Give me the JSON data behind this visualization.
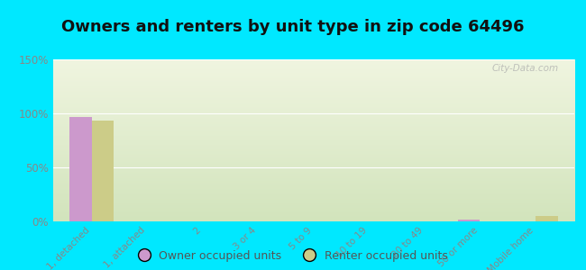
{
  "title": "Owners and renters by unit type in zip code 64496",
  "categories": [
    "1, detached",
    "1, attached",
    "2",
    "3 or 4",
    "5 to 9",
    "10 to 19",
    "20 to 49",
    "50 or more",
    "Mobile home"
  ],
  "owner_values": [
    97,
    0,
    0,
    0,
    0,
    0,
    0,
    2,
    0
  ],
  "renter_values": [
    93,
    0,
    0,
    0,
    0,
    0,
    0,
    0,
    5
  ],
  "owner_color": "#cc99cc",
  "renter_color": "#cccc88",
  "ylim": [
    0,
    150
  ],
  "yticks": [
    0,
    50,
    100,
    150
  ],
  "ytick_labels": [
    "0%",
    "50%",
    "100%",
    "150%"
  ],
  "background_outer": "#00e8ff",
  "background_inner_top": "#f0f5e0",
  "background_inner_bottom": "#e0edd0",
  "watermark": "City-Data.com",
  "bar_width": 0.4,
  "title_fontsize": 13,
  "tick_label_color": "#888888",
  "grid_color": "#ffffff"
}
